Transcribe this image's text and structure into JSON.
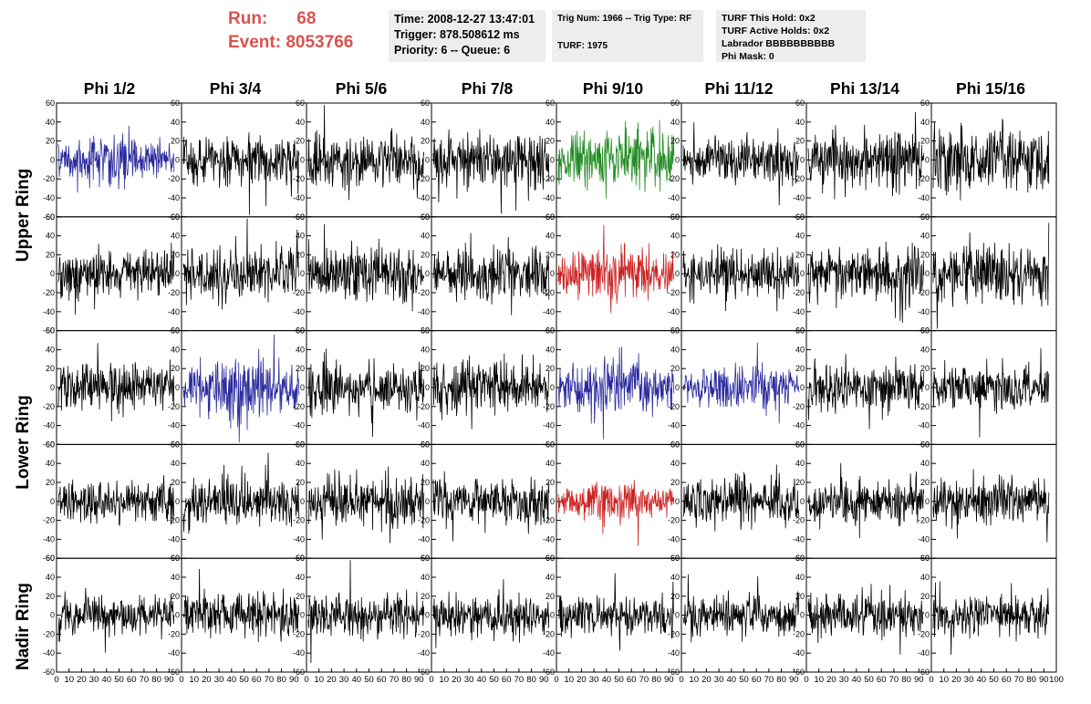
{
  "header": {
    "run_label": "Run:",
    "run_value": "68",
    "event_label": "Event:",
    "event_value": "8053766",
    "time": "Time: 2008-12-27 13:47:01",
    "trigger": "Trigger: 878.508612 ms",
    "priority": "Priority: 6 -- Queue: 6",
    "trig_num": "Trig Num: 1966 -- Trig Type: RF",
    "turf": "TURF: 1975",
    "turf_this_hold": "TURF This Hold: 0x2",
    "turf_active_holds": "TURF Active Holds: 0x2",
    "labrador": "Labrador BBBBBBBBBB",
    "phi_mask": "Phi Mask: 0"
  },
  "columns": [
    "Phi 1/2",
    "Phi 3/4",
    "Phi 5/6",
    "Phi 7/8",
    "Phi 9/10",
    "Phi 11/12",
    "Phi 13/14",
    "Phi 15/16"
  ],
  "row_labels": [
    "Upper Ring",
    "Lower Ring",
    "Nadir Ring"
  ],
  "y_ticks": [
    "60",
    "40",
    "20",
    "0",
    "-20",
    "-40",
    "-60"
  ],
  "x_ticks": [
    "0",
    "10",
    "20",
    "30",
    "40",
    "50",
    "60",
    "70",
    "80",
    "90",
    "100"
  ],
  "colors": {
    "blue": "#2b2b9f",
    "green": "#228b22",
    "red": "#cc2222",
    "black": "#000000",
    "header_red": "#d9534f",
    "info_bg": "#ededed"
  },
  "chart_data": {
    "type": "line",
    "x_range": [
      0,
      100
    ],
    "y_range": [
      -60,
      60
    ],
    "panel_colors": [
      [
        "blue",
        "black",
        "black",
        "black",
        "green",
        "black",
        "black",
        "black"
      ],
      [
        "black",
        "black",
        "black",
        "black",
        "red",
        "black",
        "black",
        "black"
      ],
      [
        "black",
        "blue",
        "black",
        "black",
        "blue",
        "blue",
        "black",
        "black"
      ],
      [
        "black",
        "black",
        "black",
        "black",
        "red",
        "black",
        "black",
        "black"
      ],
      [
        "black",
        "black",
        "black",
        "black",
        "black",
        "black",
        "black",
        "black"
      ]
    ],
    "amplitudes": [
      [
        20,
        18,
        20,
        20,
        28,
        16,
        22,
        24
      ],
      [
        18,
        20,
        20,
        18,
        22,
        18,
        20,
        20
      ],
      [
        18,
        26,
        18,
        20,
        22,
        18,
        18,
        16
      ],
      [
        16,
        18,
        20,
        18,
        16,
        18,
        16,
        18
      ],
      [
        15,
        16,
        16,
        15,
        15,
        16,
        16,
        15
      ]
    ]
  }
}
